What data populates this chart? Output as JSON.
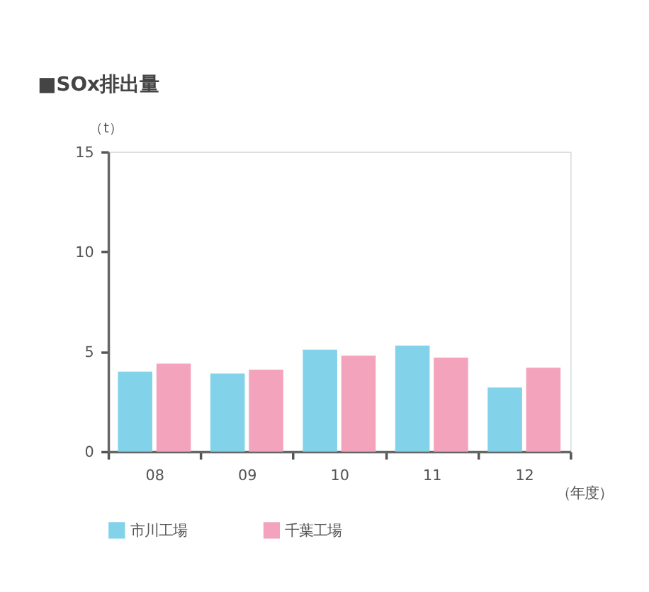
{
  "chart_data": {
    "type": "bar",
    "title": "■SOx排出量",
    "ylabel": "（t）",
    "xlabel": "（年度）",
    "categories": [
      "08",
      "09",
      "10",
      "11",
      "12"
    ],
    "series": [
      {
        "name": "市川工場",
        "color": "#82d2ea",
        "values": [
          4.0,
          3.9,
          5.1,
          5.3,
          3.2
        ]
      },
      {
        "name": "千葉工場",
        "color": "#f4a3bc",
        "values": [
          4.4,
          4.1,
          4.8,
          4.7,
          4.2
        ]
      }
    ],
    "ylim": [
      0,
      15
    ],
    "yticks": [
      0,
      5,
      10,
      15
    ],
    "grid": false,
    "legend": "bottom"
  }
}
